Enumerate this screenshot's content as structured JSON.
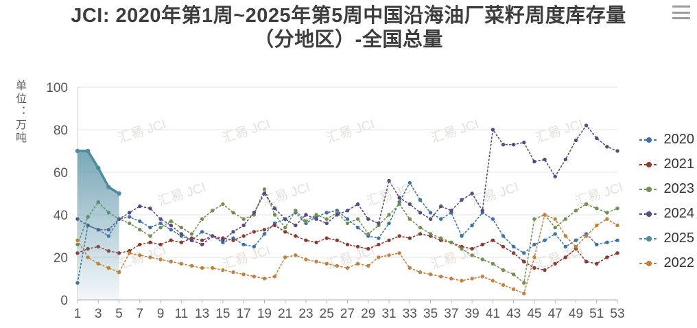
{
  "window": {
    "menu_icon": "hamburger-menu"
  },
  "chart_data": {
    "type": "line",
    "title": "JCI: 2020年第1周~2025年第5周中国沿海油厂菜籽周度库存量（分地区）-全国总量",
    "unit_label": "单位：万吨",
    "watermark": "汇易 JCI",
    "xlabel": "",
    "ylabel": "万吨",
    "ylim": [
      0,
      100
    ],
    "y_ticks": [
      0,
      20,
      40,
      60,
      80,
      100
    ],
    "x_tick_labels": [
      "1",
      "3",
      "5",
      "7",
      "9",
      "11",
      "13",
      "15",
      "17",
      "19",
      "21",
      "23",
      "25",
      "27",
      "29",
      "31",
      "33",
      "35",
      "37",
      "39",
      "41",
      "43",
      "45",
      "47",
      "49",
      "51",
      "53"
    ],
    "grid": true,
    "legend_position": "right",
    "line_style": "dashed-with-dots",
    "series": [
      {
        "name": "2020",
        "color": "#3a74a8",
        "style": "dashed",
        "values": [
          8,
          35,
          33,
          30,
          38,
          39,
          37,
          34,
          36,
          33,
          30,
          28,
          32,
          30,
          27,
          29,
          26,
          25,
          31,
          36,
          38,
          41,
          36,
          39,
          41,
          42,
          38,
          34,
          30,
          29,
          36,
          46,
          55,
          47,
          41,
          38,
          41,
          30,
          35,
          41,
          38,
          30,
          25,
          22,
          26,
          28,
          31,
          25,
          28,
          31,
          26,
          27,
          28
        ]
      },
      {
        "name": "2021",
        "color": "#8e3b32",
        "style": "dashed",
        "values": [
          22,
          24,
          25,
          23,
          22,
          23,
          26,
          27,
          26,
          28,
          27,
          29,
          28,
          30,
          29,
          28,
          30,
          32,
          33,
          35,
          32,
          30,
          28,
          27,
          29,
          28,
          26,
          25,
          24,
          26,
          28,
          30,
          29,
          31,
          30,
          28,
          27,
          25,
          24,
          26,
          28,
          25,
          22,
          18,
          15,
          14,
          17,
          20,
          24,
          18,
          17,
          20,
          22
        ]
      },
      {
        "name": "2023",
        "color": "#71924c",
        "style": "dashed",
        "values": [
          26,
          39,
          46,
          41,
          38,
          36,
          33,
          30,
          34,
          37,
          34,
          31,
          38,
          42,
          45,
          41,
          38,
          40,
          52,
          40,
          34,
          42,
          37,
          40,
          38,
          41,
          36,
          38,
          31,
          35,
          40,
          45,
          38,
          34,
          31,
          29,
          27,
          24,
          21,
          19,
          17,
          14,
          12,
          8,
          38,
          40,
          34,
          38,
          42,
          45,
          43,
          41,
          43
        ]
      },
      {
        "name": "2024",
        "color": "#584a85",
        "style": "dashed",
        "values": [
          38,
          35,
          33,
          33,
          38,
          41,
          44,
          43,
          38,
          35,
          31,
          28,
          26,
          30,
          28,
          32,
          35,
          41,
          50,
          43,
          38,
          35,
          40,
          38,
          36,
          40,
          42,
          45,
          38,
          36,
          56,
          48,
          45,
          41,
          38,
          44,
          42,
          47,
          50,
          42,
          80,
          73,
          73,
          74,
          65,
          66,
          58,
          66,
          75,
          82,
          76,
          72,
          70
        ]
      },
      {
        "name": "2025",
        "color": "#4d8b9f",
        "style": "solid-area",
        "values": [
          70,
          70,
          62,
          53,
          50
        ]
      },
      {
        "name": "2022",
        "color": "#c5813a",
        "style": "dashed",
        "values": [
          28,
          20,
          17,
          15,
          13,
          22,
          21,
          20,
          19,
          18,
          17,
          16,
          15,
          15,
          14,
          13,
          12,
          11,
          10,
          11,
          20,
          21,
          19,
          18,
          17,
          16,
          15,
          17,
          16,
          20,
          21,
          22,
          15,
          13,
          12,
          11,
          10,
          9,
          10,
          11,
          9,
          7,
          5,
          3,
          20,
          40,
          38,
          30,
          25,
          30,
          35,
          38,
          35
        ]
      }
    ]
  }
}
